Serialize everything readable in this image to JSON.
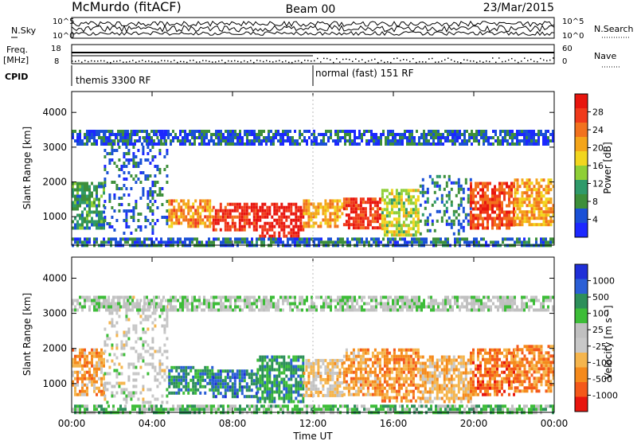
{
  "header": {
    "station": "McMurdo (fitACF)",
    "beam": "Beam 00",
    "date": "23/Mar/2015"
  },
  "status_panels": {
    "nsky": {
      "label": "N.Sky",
      "ticks": [
        "10^5",
        "10^0"
      ]
    },
    "nsearch": {
      "label": "N.Search",
      "ticks": [
        "10^5",
        "10^0"
      ]
    },
    "freq": {
      "label": "Freq.",
      "unit": "[MHz]",
      "ticks": [
        "18",
        "8"
      ]
    },
    "nave": {
      "label": "Nave",
      "ticks": [
        "60",
        "0"
      ]
    },
    "cpid": {
      "label": "CPID",
      "segments": [
        {
          "start_hour": 0,
          "end_hour": 12,
          "name": "themis 3300 RF"
        },
        {
          "start_hour": 12,
          "end_hour": 24,
          "name": "normal (fast) 151 RF"
        }
      ]
    }
  },
  "colors": {
    "power": [
      "#1c28ff",
      "#1a50d6",
      "#3d8f3a",
      "#2f9a6a",
      "#8fcf37",
      "#f2d61f",
      "#f4a51a",
      "#f2721e",
      "#f03a1b",
      "#e8150e"
    ],
    "velocity": [
      "#e8150e",
      "#f4581a",
      "#f58a1c",
      "#f5b54d",
      "#c8c8c8",
      "#c0c0c0",
      "#3dbd38",
      "#2d8f5a",
      "#2b5fd6",
      "#1f2fd8"
    ]
  },
  "chart_data": [
    {
      "type": "heatmap",
      "panel": "power",
      "xlabel": "",
      "ylabel": "Slant Range [km]",
      "x_ticks": [
        "00:00",
        "04:00",
        "08:00",
        "12:00",
        "16:00",
        "20:00",
        "00:00"
      ],
      "xlim": [
        0,
        24
      ],
      "y_ticks": [
        "1000",
        "2000",
        "3000",
        "4000"
      ],
      "ylim": [
        180,
        4600
      ],
      "colorbar": {
        "label": "Power [dB]",
        "ticks": [
          "4",
          "8",
          "12",
          "16",
          "20",
          "24",
          "28"
        ],
        "range": [
          0,
          32
        ]
      },
      "regions": [
        {
          "t0": 0.0,
          "t1": 1.6,
          "r0": 700,
          "r1": 2000,
          "lvl": 2.5
        },
        {
          "t0": 1.6,
          "t1": 4.8,
          "r0": 500,
          "r1": 3500,
          "lvl": 1.2
        },
        {
          "t0": 4.8,
          "t1": 7.0,
          "r0": 700,
          "r1": 1500,
          "lvl": 6.5
        },
        {
          "t0": 7.0,
          "t1": 9.2,
          "r0": 650,
          "r1": 1400,
          "lvl": 8.3
        },
        {
          "t0": 9.2,
          "t1": 11.5,
          "r0": 450,
          "r1": 1400,
          "lvl": 8.8
        },
        {
          "t0": 11.5,
          "t1": 13.5,
          "r0": 700,
          "r1": 1500,
          "lvl": 6.0
        },
        {
          "t0": 13.5,
          "t1": 15.4,
          "r0": 650,
          "r1": 1550,
          "lvl": 8.1
        },
        {
          "t0": 15.4,
          "t1": 17.3,
          "r0": 500,
          "r1": 1800,
          "lvl": 4.5
        },
        {
          "t0": 17.3,
          "t1": 19.8,
          "r0": 500,
          "r1": 2200,
          "lvl": 1.5
        },
        {
          "t0": 19.8,
          "t1": 22.0,
          "r0": 700,
          "r1": 2000,
          "lvl": 7.8
        },
        {
          "t0": 22.0,
          "t1": 24.0,
          "r0": 800,
          "r1": 2100,
          "lvl": 6.0
        },
        {
          "t0": 0.0,
          "t1": 24.0,
          "r0": 3100,
          "r1": 3500,
          "lvl": 1.0
        },
        {
          "t0": 0.0,
          "t1": 24.0,
          "r0": 200,
          "r1": 400,
          "lvl": 1.4
        }
      ]
    },
    {
      "type": "heatmap",
      "panel": "velocity",
      "xlabel": "Time UT",
      "ylabel": "Slant Range [km]",
      "x_ticks": [
        "00:00",
        "04:00",
        "08:00",
        "12:00",
        "16:00",
        "20:00",
        "00:00"
      ],
      "xlim": [
        0,
        24
      ],
      "y_ticks": [
        "1000",
        "2000",
        "3000",
        "4000"
      ],
      "ylim": [
        180,
        4600
      ],
      "colorbar": {
        "label": "Velocity [m s⁻¹]",
        "ticks": [
          "1000",
          "500",
          "100",
          "25",
          "-25",
          "-100",
          "-500",
          "-1000"
        ],
        "range": [
          -1200,
          1200
        ]
      },
      "regions": [
        {
          "t0": 0.0,
          "t1": 1.6,
          "r0": 700,
          "r1": 2000,
          "lvl": 2.5
        },
        {
          "t0": 1.6,
          "t1": 4.8,
          "r0": 500,
          "r1": 3500,
          "lvl": 4.5
        },
        {
          "t0": 4.8,
          "t1": 7.0,
          "r0": 700,
          "r1": 1500,
          "lvl": 7.0
        },
        {
          "t0": 7.0,
          "t1": 9.2,
          "r0": 650,
          "r1": 1400,
          "lvl": 7.5
        },
        {
          "t0": 9.2,
          "t1": 11.5,
          "r0": 450,
          "r1": 1800,
          "lvl": 6.8
        },
        {
          "t0": 11.5,
          "t1": 13.5,
          "r0": 700,
          "r1": 1700,
          "lvl": 3.5
        },
        {
          "t0": 13.5,
          "t1": 15.4,
          "r0": 650,
          "r1": 2000,
          "lvl": 2.4
        },
        {
          "t0": 15.4,
          "t1": 17.3,
          "r0": 500,
          "r1": 2000,
          "lvl": 2.2
        },
        {
          "t0": 17.3,
          "t1": 19.8,
          "r0": 500,
          "r1": 1800,
          "lvl": 3.0
        },
        {
          "t0": 19.8,
          "t1": 22.0,
          "r0": 700,
          "r1": 2000,
          "lvl": 1.5
        },
        {
          "t0": 22.0,
          "t1": 24.0,
          "r0": 800,
          "r1": 2100,
          "lvl": 1.8
        },
        {
          "t0": 0.0,
          "t1": 24.0,
          "r0": 3100,
          "r1": 3500,
          "lvl": 5.0
        },
        {
          "t0": 0.0,
          "t1": 24.0,
          "r0": 200,
          "r1": 400,
          "lvl": 6.0
        }
      ]
    }
  ]
}
